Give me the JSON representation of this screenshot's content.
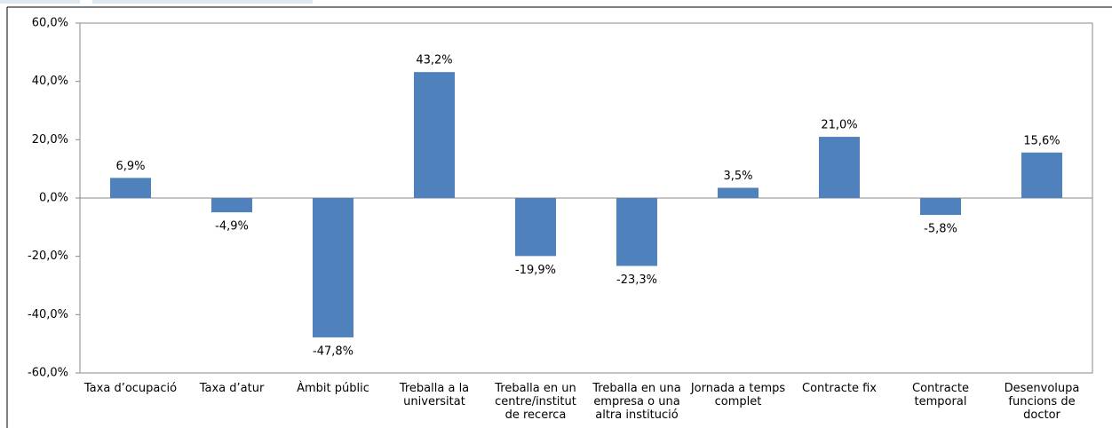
{
  "chart_data": {
    "type": "bar",
    "categories": [
      "Taxa d’ocupació",
      "Taxa d’atur",
      "Àmbit públic",
      "Treballa a la universitat",
      "Treballa en un centre/institut de recerca",
      "Treballa en una empresa o una altra institució",
      "Jornada a temps complet",
      "Contracte fix",
      "Contracte temporal",
      "Desenvolupa funcions de doctor"
    ],
    "values": [
      6.9,
      -4.9,
      -47.8,
      43.2,
      -19.9,
      -23.3,
      3.5,
      21.0,
      -5.8,
      15.6
    ],
    "value_labels": [
      "6,9%",
      "-4,9%",
      "-47,8%",
      "43,2%",
      "-19,9%",
      "-23,3%",
      "3,5%",
      "21,0%",
      "-5,8%",
      "15,6%"
    ],
    "color": "#4f81bd",
    "ylim": [
      -60,
      60
    ],
    "yticks": [
      {
        "value": -60,
        "label": "-60,0%"
      },
      {
        "value": -40,
        "label": "-40,0%"
      },
      {
        "value": -20,
        "label": "-20,0%"
      },
      {
        "value": 0,
        "label": "0,0%"
      },
      {
        "value": 20,
        "label": "20,0%"
      },
      {
        "value": 40,
        "label": "40,0%"
      },
      {
        "value": 60,
        "label": "60,0%"
      }
    ],
    "grid": false
  }
}
